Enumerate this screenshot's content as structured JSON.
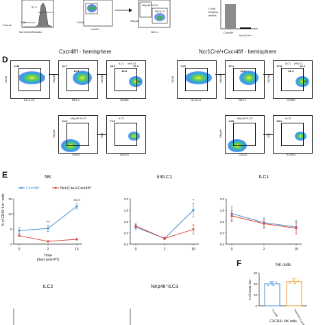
{
  "colors": {
    "wt": "#4a8fd8",
    "ko": "#e0463e",
    "bar_wt": "#4a8fd8",
    "bar_ko": "#e8a23c",
    "gate": "#111111"
  },
  "top_row": {
    "histogram": {
      "ylabel": "Counts",
      "xlabel": "Ncr1Cre-tdTomato",
      "gate_values": [
        "97.2",
        "2.60"
      ]
    },
    "scatter1": {
      "ylabel": "CD45",
      "xlabel": "Lin&LD"
    },
    "scatter2": {
      "ylabel": "NKp46",
      "xlabel": "NK1.1",
      "gate_labels": [
        "NKp46⁺ILC3",
        "NK/ILC1"
      ]
    },
    "bar_small": {
      "ylabel": "Cxcr4 Relative mRNA",
      "categories": [
        "Cxcr4f/f",
        "Ncr1Cre/+"
      ]
    }
  },
  "panel_d": {
    "letter": "D",
    "hemi_left": "Cxcr4f/f - hemisphere",
    "hemi_right": "Ncr1Cre/+Cxcr4f/f - hemisphere",
    "left": {
      "row1": [
        {
          "ylabel": "CD45",
          "xlabel": "Lin & LD",
          "values": [
            "0.88"
          ]
        },
        {
          "ylabel": "NKp46",
          "xlabel": "NK1.1",
          "values": [
            "81.7",
            "14.3"
          ]
        },
        {
          "ylabel": "CD49a",
          "xlabel": "CD49b",
          "labels": [
            "ILC1",
            "intILC1",
            "NK"
          ],
          "values": [
            "35.5",
            "44.4",
            "47.6"
          ]
        }
      ],
      "row2": [
        {
          "ylabel": "NKp46",
          "xlabel": "CD127",
          "labels": [
            "NKp46⁺ILC3"
          ],
          "values": [
            "0.14"
          ]
        },
        {
          "ylabel": "ST2",
          "xlabel": "KLRG1",
          "labels": [
            "ILC2"
          ],
          "values": [
            "71.3"
          ]
        }
      ]
    },
    "right": {
      "row1": [
        {
          "ylabel": "CD45",
          "xlabel": "Lin & LD",
          "values": [
            "0.37"
          ]
        },
        {
          "ylabel": "NKp46",
          "xlabel": "NK1.1",
          "values": [
            "87.1",
            "12.2"
          ]
        },
        {
          "ylabel": "CD49a",
          "xlabel": "CD49b",
          "labels": [
            "ILC1",
            "intILC1",
            "NK"
          ],
          "values": [
            "37.5",
            "31.4",
            "28.0"
          ]
        }
      ],
      "row2": [
        {
          "ylabel": "NKp46",
          "xlabel": "CD127",
          "labels": [
            "NKp46⁺ILC3"
          ],
          "values": [
            "0.09"
          ]
        },
        {
          "ylabel": "ST2",
          "xlabel": "KLRG1",
          "labels": [
            "ILC2"
          ],
          "values": [
            "93.2"
          ]
        }
      ]
    }
  },
  "panel_e": {
    "letter": "E",
    "ylabel": "% of CD45⁺Lin⁻ cells"
  },
  "panel_f": {
    "letter": "F"
  },
  "chart_data": [
    {
      "type": "line",
      "title": "NK",
      "xlabel": "Time (days post-PT)",
      "x": [
        0,
        2,
        15
      ],
      "xticks": [
        "0",
        "2",
        "15"
      ],
      "ylim": [
        0,
        15
      ],
      "yticks": [
        "0",
        "5",
        "10",
        "15"
      ],
      "legend": "top-left",
      "annotations": [
        {
          "x": 2,
          "text": "**"
        },
        {
          "x": 15,
          "text": "****"
        }
      ],
      "series": [
        {
          "name": "Cxcr4f/f",
          "values": [
            4.5,
            5.2,
            12.5
          ],
          "err": [
            1.0,
            1.0,
            0.9
          ]
        },
        {
          "name": "Ncr1Cre/+Cxcr4f/f",
          "values": [
            2.8,
            0.9,
            1.6
          ],
          "err": [
            0.3,
            0.2,
            0.3
          ]
        }
      ]
    },
    {
      "type": "line",
      "title": "intILC1",
      "x": [
        0,
        2,
        15
      ],
      "xticks": [
        "0",
        "2",
        "15"
      ],
      "ylim": [
        0,
        2
      ],
      "yticks": [
        "0.0",
        "0.5",
        "1.0",
        "1.5",
        "2.0"
      ],
      "annotations": [
        {
          "x": 15,
          "text": "*"
        }
      ],
      "series": [
        {
          "name": "Cxcr4f/f",
          "values": [
            0.75,
            0.25,
            1.5
          ],
          "err": [
            0.12,
            0.05,
            0.3
          ]
        },
        {
          "name": "Ncr1Cre/+Cxcr4f/f",
          "values": [
            0.8,
            0.25,
            0.65
          ],
          "err": [
            0.1,
            0.05,
            0.2
          ]
        }
      ]
    },
    {
      "type": "line",
      "title": "ILC1",
      "x": [
        0,
        2,
        15
      ],
      "xticks": [
        "0",
        "2",
        "15"
      ],
      "ylim": [
        0,
        2
      ],
      "yticks": [
        "0.0",
        "0.5",
        "1.0",
        "1.5",
        "2.0"
      ],
      "series": [
        {
          "name": "Cxcr4f/f",
          "values": [
            1.35,
            0.95,
            0.75
          ],
          "err": [
            0.3,
            0.2,
            0.3
          ]
        },
        {
          "name": "Ncr1Cre/+Cxcr4f/f",
          "values": [
            1.25,
            0.9,
            0.7
          ],
          "err": [
            0.25,
            0.2,
            0.25
          ]
        }
      ]
    },
    {
      "type": "line",
      "title": "ILC2",
      "x": [
        0,
        2,
        15
      ],
      "series": []
    },
    {
      "type": "line",
      "title": "NKp46⁺ILC3",
      "x": [
        0,
        2,
        15
      ],
      "series": []
    },
    {
      "type": "bar",
      "title": "NK cells",
      "xlabel": "CXCR4+ NK cells",
      "ylabel": "% of CD45⁺Lin⁻",
      "categories": [
        "Cxcr4f/f",
        "Ncr1Cre/+Cxcr4f/f"
      ],
      "values": [
        20,
        22
      ],
      "err": [
        2,
        3
      ],
      "ylim": [
        0,
        30
      ],
      "yticks": [
        "0",
        "10",
        "20",
        "30"
      ]
    }
  ]
}
